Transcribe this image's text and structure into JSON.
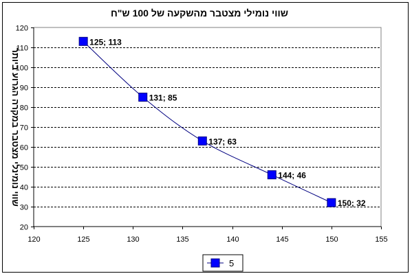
{
  "chart_data": {
    "type": "line",
    "title": "שווי נומילי מצטבר מהשקעה של 100 ש\"ח",
    "ylabel": "שווי נומינלי מצטבר במקרה הגרוע ביותר",
    "xlabel": "",
    "xlim": [
      120,
      155
    ],
    "ylim": [
      20,
      120
    ],
    "xticks": [
      120,
      125,
      130,
      135,
      140,
      145,
      150,
      155
    ],
    "yticks": [
      20,
      30,
      40,
      50,
      60,
      70,
      80,
      90,
      100,
      110,
      120
    ],
    "grid": "horizontal-dashed",
    "legend_position": "bottom",
    "series": [
      {
        "name": "5",
        "color": "#0000ff",
        "line_color": "#000080",
        "points": [
          {
            "x": 125,
            "y": 113,
            "label": "125; 113"
          },
          {
            "x": 131,
            "y": 85,
            "label": "131; 85"
          },
          {
            "x": 137,
            "y": 63,
            "label": "137; 63"
          },
          {
            "x": 144,
            "y": 46,
            "label": "144; 46"
          },
          {
            "x": 150,
            "y": 32,
            "label": "150; 32"
          }
        ]
      }
    ]
  }
}
